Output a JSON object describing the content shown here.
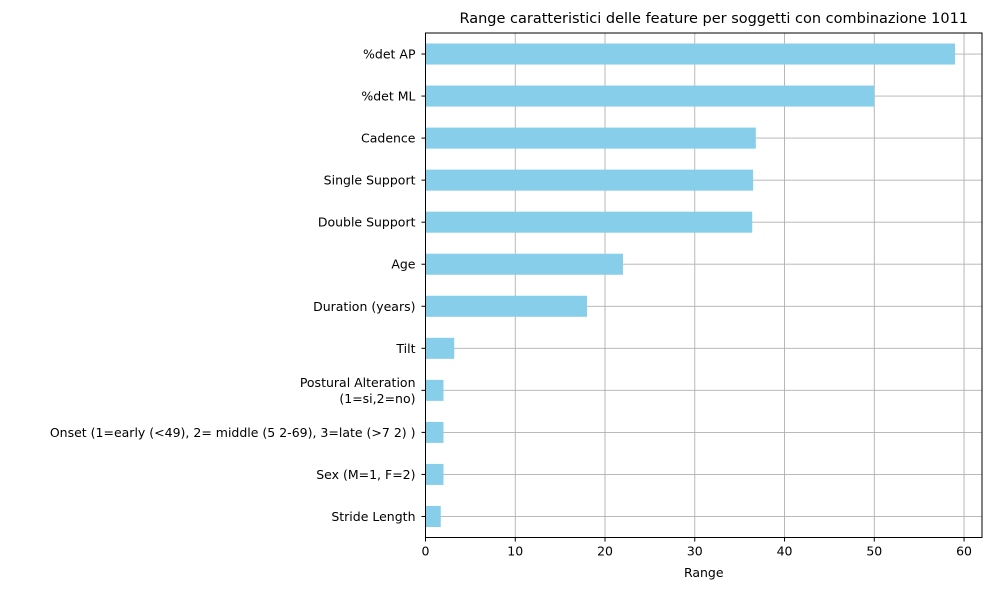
{
  "chart_data": {
    "type": "bar",
    "orientation": "horizontal",
    "title": "Range caratteristici delle feature per soggetti con combinazione 1011",
    "xlabel": "Range",
    "ylabel": "",
    "xlim": [
      0,
      62
    ],
    "xticks": [
      0,
      10,
      20,
      30,
      40,
      50,
      60
    ],
    "grid": true,
    "bar_color": "#87ceeb",
    "grid_color": "#b0b0b0",
    "categories": [
      "%det AP",
      "%det ML",
      "Cadence",
      "Single Support",
      "Double Support",
      "Age",
      "Duration (years)",
      "Tilt",
      "Postural Alteration\n(1=si,2=no)",
      "Onset (1=early (<49), 2= middle (5 2-69), 3=late (>7 2) )",
      "Sex (M=1, F=2)",
      "Stride Length"
    ],
    "values": [
      59.0,
      50.0,
      36.8,
      36.5,
      36.4,
      22.0,
      18.0,
      3.2,
      2.0,
      2.0,
      2.0,
      1.7
    ]
  }
}
